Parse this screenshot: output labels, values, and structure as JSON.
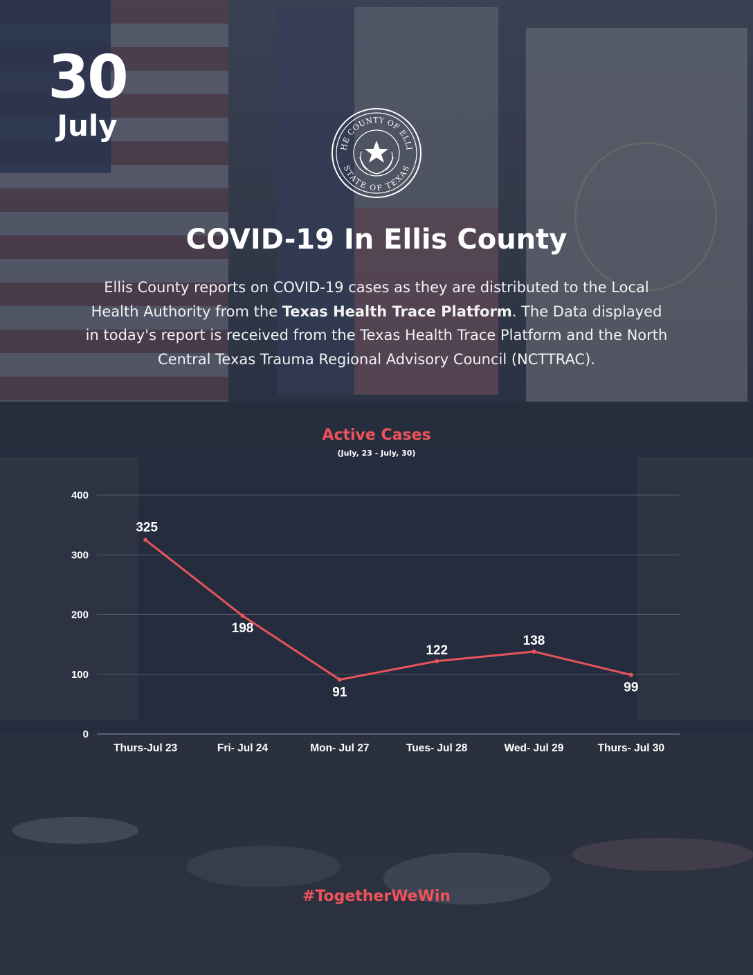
{
  "header": {
    "day": "30",
    "month": "July"
  },
  "seal": {
    "text_top": "THE COUNTY OF ELLIS",
    "text_bottom": "STATE OF TEXAS"
  },
  "title": "COVID-19 In Ellis County",
  "intro": {
    "part1": "Ellis County reports on COVID-19 cases as they are distributed to the Local Health Authority from the ",
    "bold": "Texas Health Trace Platform",
    "part2": ". The Data displayed in today's report is received from the Texas Health Trace Platform and the North Central Texas Trauma Regional Advisory Council (NCTTRAC)."
  },
  "chart_data": {
    "type": "line",
    "title": "Active Cases",
    "subtitle": "(July, 23 - July, 30)",
    "categories": [
      "Thurs-Jul 23",
      "Fri- Jul 24",
      "Mon- Jul 27",
      "Tues- Jul 28",
      "Wed- Jul 29",
      "Thurs- Jul 30"
    ],
    "series": [
      {
        "values": [
          325,
          198,
          91,
          122,
          138,
          99
        ]
      }
    ],
    "yticks": [
      "0",
      "100",
      "200",
      "300",
      "400"
    ],
    "ylim": [
      0,
      400
    ],
    "grid": true,
    "line_color": "#e8545a",
    "xlabel": "",
    "ylabel": ""
  },
  "footer": {
    "hashtag": "#TogetherWeWin"
  },
  "colors": {
    "accent": "#f0525a",
    "text": "#ffffff"
  }
}
